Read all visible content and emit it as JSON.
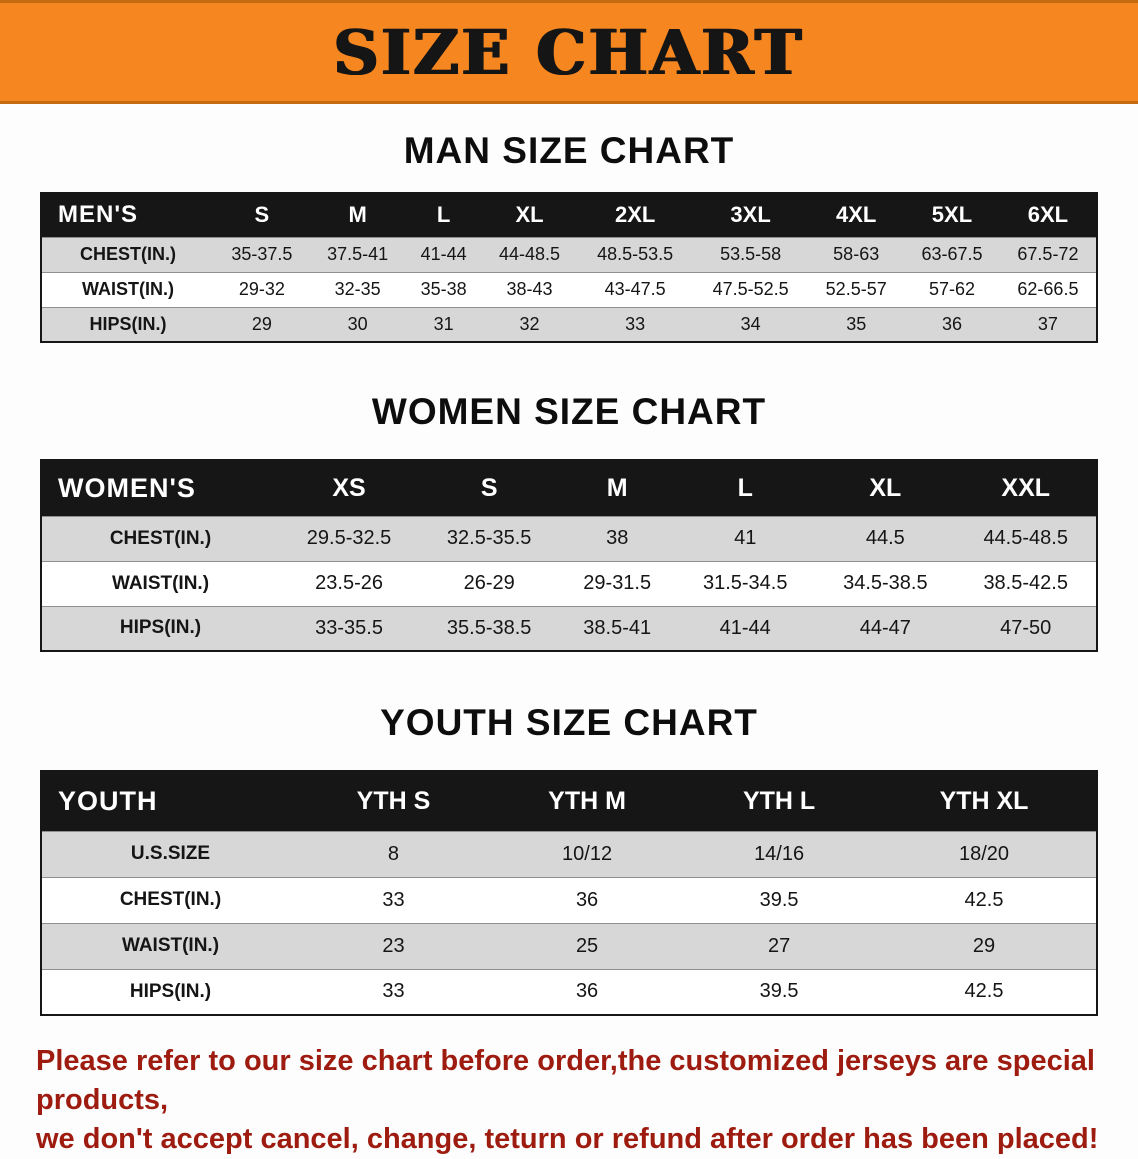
{
  "banner": {
    "title": "SIZE CHART",
    "bg_color": "#f6861f"
  },
  "chart_data": [
    {
      "type": "table",
      "title": "MAN SIZE CHART",
      "header": [
        "MEN'S",
        "S",
        "M",
        "L",
        "XL",
        "2XL",
        "3XL",
        "4XL",
        "5XL",
        "6XL"
      ],
      "rows": [
        [
          "CHEST(IN.)",
          "35-37.5",
          "37.5-41",
          "41-44",
          "44-48.5",
          "48.5-53.5",
          "53.5-58",
          "58-63",
          "63-67.5",
          "67.5-72"
        ],
        [
          "WAIST(IN.)",
          "29-32",
          "32-35",
          "35-38",
          "38-43",
          "43-47.5",
          "47.5-52.5",
          "52.5-57",
          "57-62",
          "62-66.5"
        ],
        [
          "HIPS(IN.)",
          "29",
          "30",
          "31",
          "32",
          "33",
          "34",
          "35",
          "36",
          "37"
        ]
      ]
    },
    {
      "type": "table",
      "title": "WOMEN SIZE CHART",
      "header": [
        "WOMEN'S",
        "XS",
        "S",
        "M",
        "L",
        "XL",
        "XXL"
      ],
      "rows": [
        [
          "CHEST(IN.)",
          "29.5-32.5",
          "32.5-35.5",
          "38",
          "41",
          "44.5",
          "44.5-48.5"
        ],
        [
          "WAIST(IN.)",
          "23.5-26",
          "26-29",
          "29-31.5",
          "31.5-34.5",
          "34.5-38.5",
          "38.5-42.5"
        ],
        [
          "HIPS(IN.)",
          "33-35.5",
          "35.5-38.5",
          "38.5-41",
          "41-44",
          "44-47",
          "47-50"
        ]
      ]
    },
    {
      "type": "table",
      "title": "YOUTH SIZE CHART",
      "header": [
        "YOUTH",
        "YTH S",
        "YTH M",
        "YTH L",
        "YTH XL"
      ],
      "rows": [
        [
          "U.S.SIZE",
          "8",
          "10/12",
          "14/16",
          "18/20"
        ],
        [
          "CHEST(IN.)",
          "33",
          "36",
          "39.5",
          "42.5"
        ],
        [
          "WAIST(IN.)",
          "23",
          "25",
          "27",
          "29"
        ],
        [
          "HIPS(IN.)",
          "33",
          "36",
          "39.5",
          "42.5"
        ]
      ]
    }
  ],
  "disclaimer": {
    "line1": "Please refer to our size chart before order,the customized jerseys are special products,",
    "line2": "we don't accept cancel, change, teturn or refund after order has been placed!",
    "color": "#9e1b10"
  }
}
